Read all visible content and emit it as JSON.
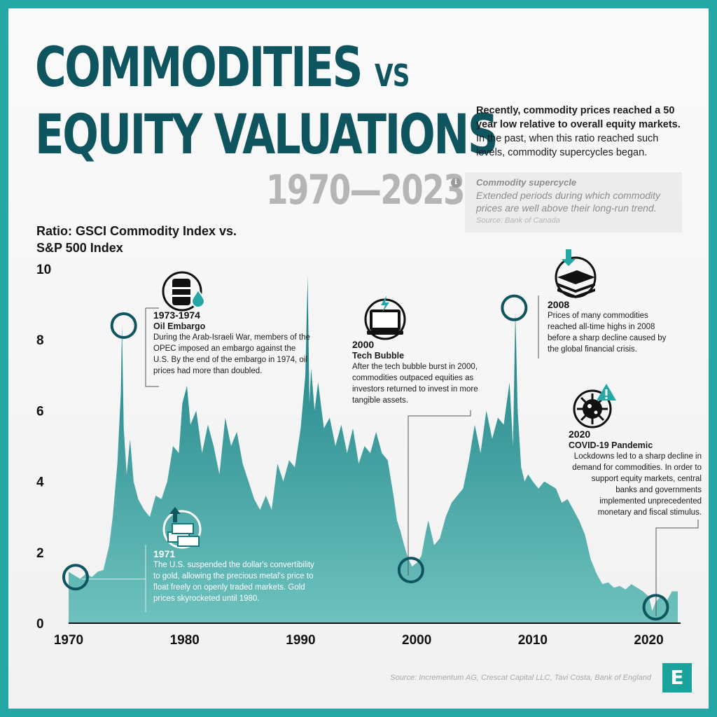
{
  "title": {
    "line1": "COMMODITIES",
    "vs": "VS",
    "line2": "EQUITY VALUATIONS",
    "years": "1970—2023"
  },
  "intro": {
    "bold": "Recently, commodity prices reached a 50 year low relative to overall equity markets.",
    "rest": " In the past, when this ratio reached such levels, commodity supercycles began."
  },
  "definition": {
    "icon": "info-icon",
    "term": "Commodity supercycle",
    "text": "Extended periods during which commodity prices are well above their long-run trend.",
    "source": "Source: Bank of Canada"
  },
  "chart_data": {
    "type": "area",
    "ylabel": "Ratio: GSCI Commodity Index vs. S&P 500 Index",
    "xlabel": "",
    "xlim": [
      1970,
      2022.5
    ],
    "ylim": [
      0,
      10
    ],
    "x_ticks": [
      "1970",
      "1980",
      "1990",
      "2000",
      "2010",
      "2020"
    ],
    "y_ticks": [
      "0",
      "2",
      "4",
      "6",
      "8",
      "10"
    ],
    "fill_color": "#137a80",
    "fill_color_light": "#6ec2bd",
    "x": [
      1970.0,
      1970.5,
      1971.0,
      1971.5,
      1972.0,
      1972.5,
      1973.0,
      1973.5,
      1973.8,
      1974.2,
      1974.5,
      1974.6,
      1974.75,
      1975.0,
      1975.3,
      1975.6,
      1976.0,
      1976.5,
      1977.0,
      1977.5,
      1978.0,
      1978.5,
      1979.0,
      1979.5,
      1979.8,
      1980.2,
      1980.5,
      1981.0,
      1981.5,
      1982.0,
      1982.5,
      1983.0,
      1983.5,
      1984.0,
      1984.5,
      1985.0,
      1985.5,
      1986.0,
      1986.5,
      1987.0,
      1987.5,
      1988.0,
      1988.5,
      1989.0,
      1989.5,
      1990.0,
      1990.4,
      1990.6,
      1990.75,
      1990.9,
      1991.2,
      1991.5,
      1992.0,
      1992.5,
      1993.0,
      1993.5,
      1994.0,
      1994.5,
      1995.0,
      1995.5,
      1996.0,
      1996.5,
      1997.0,
      1997.5,
      1998.0,
      1998.3,
      1998.6,
      1999.0,
      1999.3,
      1999.6,
      2000.0,
      2000.4,
      2000.8,
      2001.0,
      2001.5,
      2002.0,
      2002.5,
      2003.0,
      2003.5,
      2004.0,
      2004.5,
      2005.0,
      2005.5,
      2006.0,
      2006.5,
      2007.0,
      2007.5,
      2008.0,
      2008.3,
      2008.5,
      2008.7,
      2009.0,
      2009.3,
      2009.6,
      2010.0,
      2010.5,
      2011.0,
      2011.5,
      2012.0,
      2012.5,
      2013.0,
      2013.5,
      2014.0,
      2014.5,
      2015.0,
      2015.5,
      2016.0,
      2016.5,
      2017.0,
      2017.5,
      2018.0,
      2018.5,
      2019.0,
      2019.5,
      2020.0,
      2020.3,
      2020.6,
      2021.0,
      2021.5,
      2022.0,
      2022.5
    ],
    "values": [
      1.45,
      1.35,
      1.25,
      1.4,
      1.3,
      1.45,
      1.5,
      2.2,
      3.0,
      4.5,
      6.5,
      8.4,
      5.5,
      4.2,
      5.2,
      4.0,
      3.5,
      3.2,
      3.0,
      3.6,
      3.5,
      4.0,
      5.0,
      4.8,
      6.2,
      6.7,
      5.6,
      6.0,
      4.8,
      5.6,
      5.0,
      4.2,
      5.8,
      5.0,
      5.4,
      4.5,
      4.0,
      3.5,
      3.2,
      3.6,
      3.2,
      4.5,
      4.0,
      4.6,
      4.4,
      5.5,
      7.0,
      9.8,
      6.2,
      7.2,
      6.0,
      6.8,
      5.5,
      5.8,
      5.0,
      5.6,
      4.8,
      5.5,
      4.5,
      5.0,
      4.8,
      5.4,
      4.8,
      4.6,
      3.6,
      2.9,
      2.6,
      2.1,
      1.8,
      1.6,
      1.7,
      1.9,
      2.6,
      2.9,
      2.2,
      2.4,
      3.0,
      3.4,
      3.6,
      3.8,
      4.6,
      5.6,
      4.8,
      6.0,
      5.2,
      5.8,
      5.6,
      6.8,
      5.0,
      8.8,
      6.0,
      4.4,
      4.0,
      4.2,
      4.0,
      3.8,
      4.0,
      3.9,
      3.8,
      3.4,
      3.5,
      3.2,
      2.9,
      2.5,
      1.8,
      1.4,
      1.1,
      1.15,
      1.0,
      1.05,
      0.95,
      1.1,
      1.0,
      0.9,
      0.75,
      0.35,
      0.6,
      0.75,
      0.6,
      0.9,
      0.9
    ]
  },
  "highlights": [
    {
      "x": 1970.6,
      "y": 1.3
    },
    {
      "x": 1974.75,
      "y": 8.4
    },
    {
      "x": 1999.5,
      "y": 1.5
    },
    {
      "x": 2008.4,
      "y": 8.9
    },
    {
      "x": 2020.6,
      "y": 0.45
    }
  ],
  "annotations": {
    "a1973": {
      "year": "1973-1974",
      "event": "Oil Embargo",
      "desc": "During the Arab-Israeli War, members of the OPEC imposed an embargo against the U.S. By the end of the embargo in 1974, oil prices had more than doubled.",
      "icon": "oil-barrel-icon"
    },
    "a1971": {
      "year": "1971",
      "desc": "The U.S. suspended the dollar's convertibility to gold, allowing the precious metal's price to float freely on openly traded markets. Gold prices skyrocketed until 1980.",
      "icon": "gold-bars-icon"
    },
    "a2000": {
      "year": "2000",
      "event": "Tech Bubble",
      "desc": "After the tech bubble burst in 2000, commodities outpaced equities as investors returned to invest in more tangible assets.",
      "icon": "laptop-icon"
    },
    "a2008": {
      "year": "2008",
      "desc": "Prices of many commodities reached all-time highs in 2008 before a sharp decline caused by the global financial crisis.",
      "icon": "money-stack-icon"
    },
    "a2020": {
      "year": "2020",
      "event": "COVID-19 Pandemic",
      "desc": "Lockdowns led to a sharp decline in demand for commodities. In order to support equity markets, central banks and governments implemented unprecedented monetary and fiscal stimulus.",
      "icon": "virus-icon"
    }
  },
  "source": "Source: Incrementum AG, Crescat Capital LLC, Tavi Costa, Bank of England",
  "logo": "E"
}
